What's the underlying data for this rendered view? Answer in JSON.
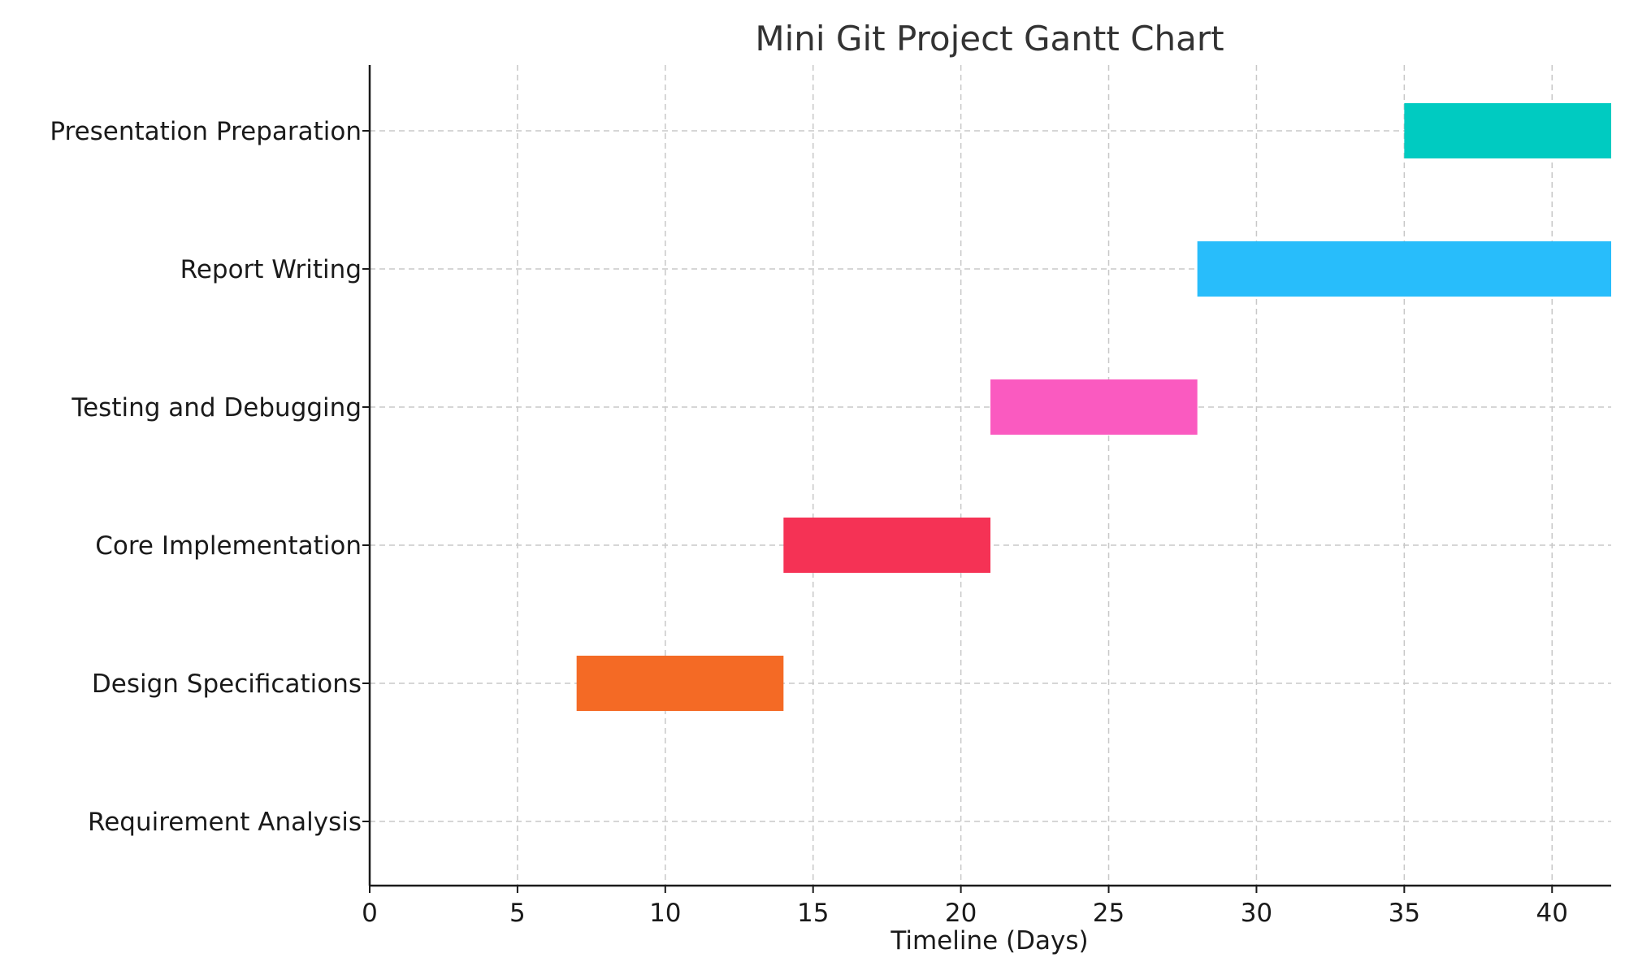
{
  "chart_data": {
    "type": "bar",
    "orientation": "horizontal",
    "title": "Mini Git Project Gantt Chart",
    "xlabel": "Timeline (Days)",
    "ylabel": "",
    "xlim": [
      0,
      42
    ],
    "xticks": [
      0,
      5,
      10,
      15,
      20,
      25,
      30,
      35,
      40
    ],
    "grid": true,
    "tasks": [
      {
        "name": "Requirement Analysis",
        "start": 0,
        "end": 0,
        "color": "#1f77b4"
      },
      {
        "name": "Design Specifications",
        "start": 7,
        "end": 14,
        "color": "#f46a25"
      },
      {
        "name": "Core Implementation",
        "start": 14,
        "end": 21,
        "color": "#f53255"
      },
      {
        "name": "Testing and Debugging",
        "start": 21,
        "end": 28,
        "color": "#fa5ac0"
      },
      {
        "name": "Report Writing",
        "start": 28,
        "end": 42,
        "color": "#28bdfb"
      },
      {
        "name": "Presentation Preparation",
        "start": 35,
        "end": 42,
        "color": "#00cbc1"
      }
    ]
  }
}
